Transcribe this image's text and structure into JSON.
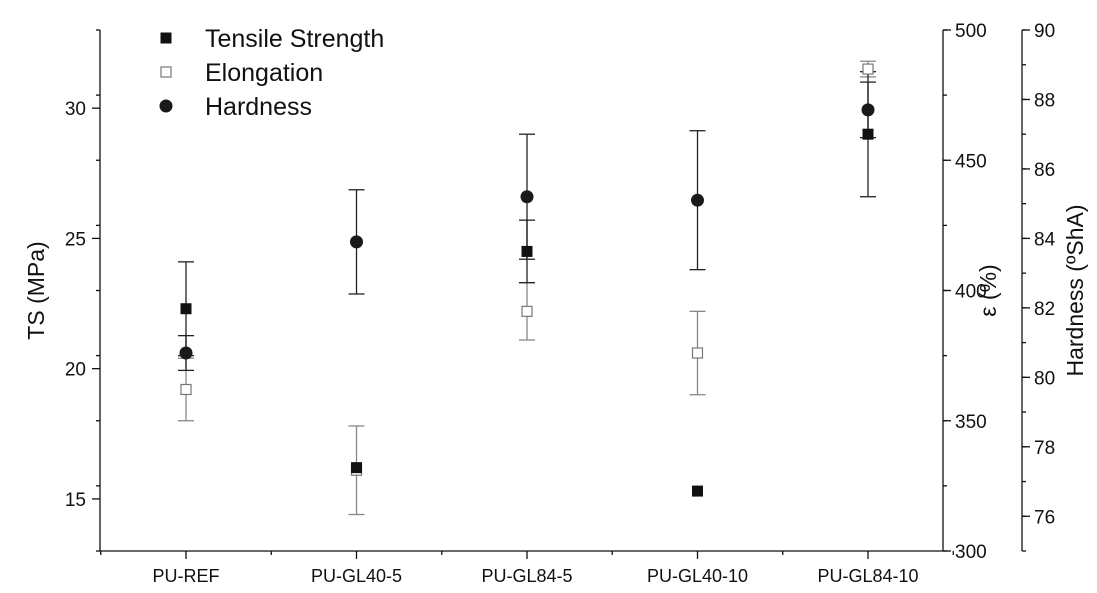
{
  "chart_data": {
    "type": "scatter",
    "categories": [
      "PU-REF",
      "PU-GL40-5",
      "PU-GL84-5",
      "PU-GL40-10",
      "PU-GL84-10"
    ],
    "axes": {
      "left": {
        "label": "TS (MPa)",
        "range": [
          13,
          33
        ],
        "ticks": [
          15,
          20,
          25,
          30
        ],
        "minor_step": 2.5
      },
      "right1": {
        "label": "ε (%)",
        "range": [
          300,
          500
        ],
        "ticks": [
          300,
          350,
          400,
          450,
          500
        ],
        "minor_step": 25
      },
      "right2": {
        "label": "Hardness (ºShA)",
        "range": [
          75,
          90
        ],
        "ticks": [
          76,
          78,
          80,
          82,
          84,
          86,
          88,
          90
        ],
        "minor_step": 1
      }
    },
    "series": [
      {
        "name": "Tensile Strength",
        "axis": "left",
        "marker": "square-filled",
        "values": [
          22.3,
          16.2,
          24.5,
          15.3,
          29.0
        ],
        "errors": [
          1.8,
          0,
          1.2,
          0,
          2.4
        ]
      },
      {
        "name": "Elongation",
        "axis": "right1",
        "marker": "square-open",
        "values": [
          362,
          331,
          392,
          376,
          485
        ],
        "errors": [
          12,
          17,
          11,
          16,
          3
        ]
      },
      {
        "name": "Hardness",
        "axis": "right2",
        "marker": "circle-filled",
        "values": [
          80.7,
          83.9,
          85.2,
          85.1,
          87.7
        ],
        "errors": [
          0.5,
          1.5,
          1.8,
          2.0,
          0.8
        ]
      }
    ],
    "legend_position": "top-left",
    "grid": false
  }
}
